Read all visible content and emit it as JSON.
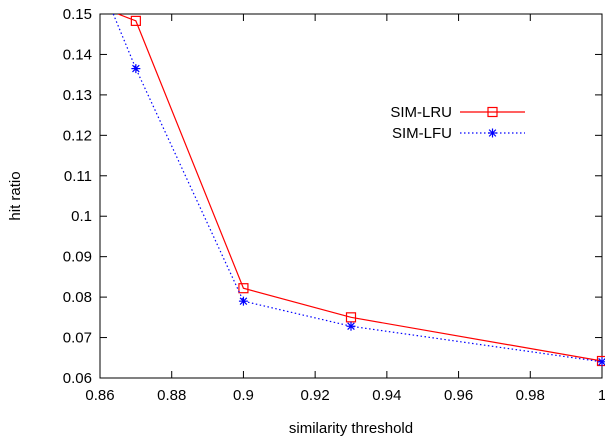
{
  "chart_data": {
    "type": "line",
    "xlabel": "similarity threshold",
    "ylabel": "hit ratio",
    "xlim": [
      0.86,
      1.0
    ],
    "ylim": [
      0.06,
      0.15
    ],
    "x_ticks": [
      0.86,
      0.88,
      0.9,
      0.92,
      0.94,
      0.96,
      0.98,
      1.0
    ],
    "x_tick_labels": [
      "0.86",
      "0.88",
      "0.9",
      "0.92",
      "0.94",
      "0.96",
      "0.98",
      "1"
    ],
    "y_ticks": [
      0.06,
      0.07,
      0.08,
      0.09,
      0.1,
      0.11,
      0.12,
      0.13,
      0.14,
      0.15
    ],
    "y_tick_labels": [
      "0.06",
      "0.07",
      "0.08",
      "0.09",
      "0.1",
      "0.11",
      "0.12",
      "0.13",
      "0.14",
      "0.15"
    ],
    "grid": false,
    "legend_position": "top-right",
    "series": [
      {
        "name": "SIM-LRU",
        "color": "#ff0000",
        "line_style": "solid",
        "marker": "square",
        "x_start": 0.865,
        "y_start": 0.15,
        "x": [
          0.87,
          0.9,
          0.93,
          1.0
        ],
        "values": [
          0.1483,
          0.0822,
          0.075,
          0.0642
        ]
      },
      {
        "name": "SIM-LFU",
        "color": "#0000ff",
        "line_style": "dotted",
        "marker": "star",
        "x_start": 0.8637,
        "y_start": 0.15,
        "x": [
          0.87,
          0.9,
          0.93,
          1.0
        ],
        "values": [
          0.1365,
          0.079,
          0.0728,
          0.064
        ]
      }
    ]
  }
}
